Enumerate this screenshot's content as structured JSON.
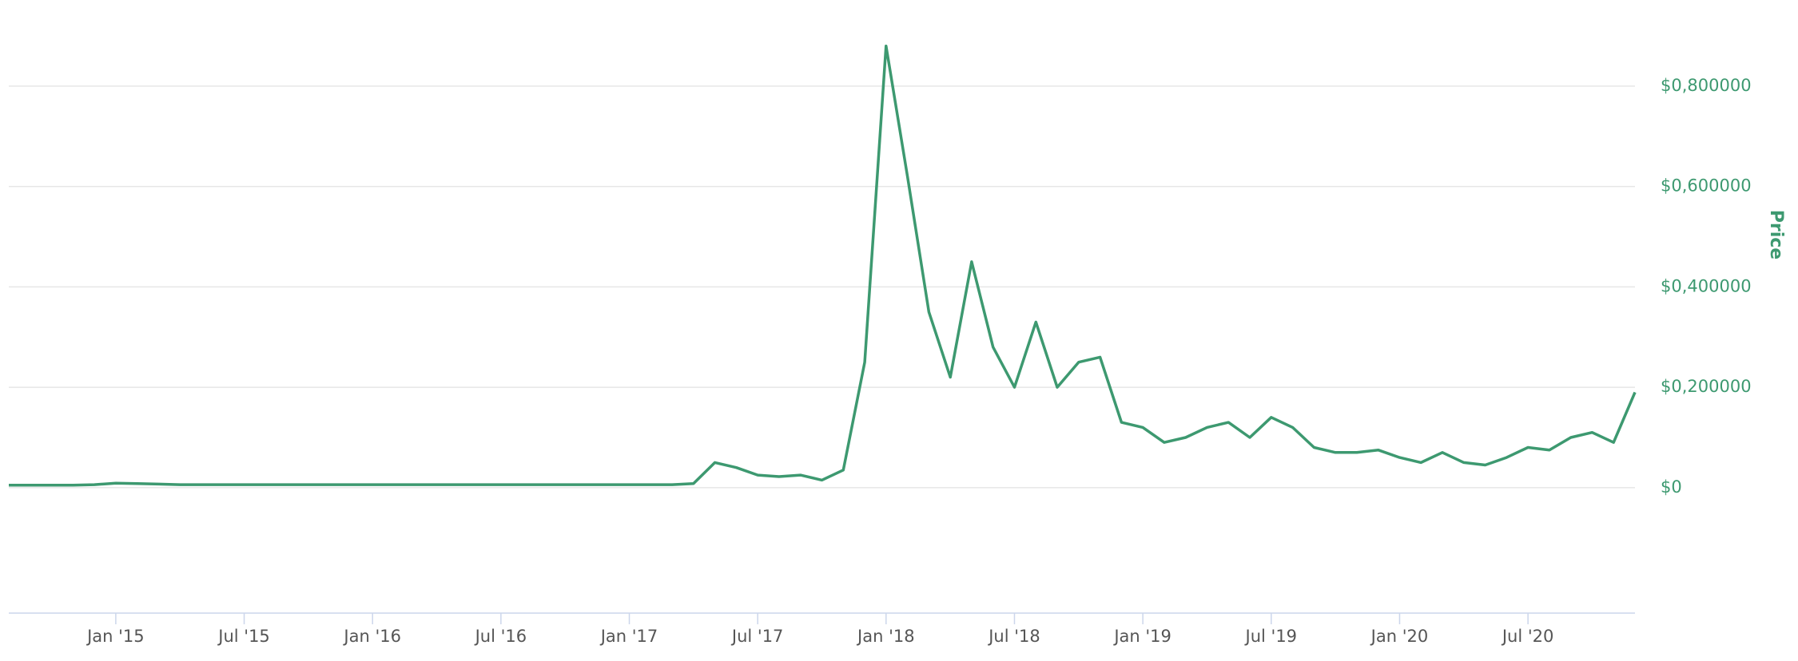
{
  "chart_data": {
    "type": "line",
    "color": "#3d9970",
    "y_label": "Price",
    "x": [
      "2014-08",
      "2014-09",
      "2014-10",
      "2014-11",
      "2014-12",
      "2015-01",
      "2015-02",
      "2015-03",
      "2015-04",
      "2015-05",
      "2015-06",
      "2015-07",
      "2015-08",
      "2015-09",
      "2015-10",
      "2015-11",
      "2015-12",
      "2016-01",
      "2016-02",
      "2016-03",
      "2016-04",
      "2016-05",
      "2016-06",
      "2016-07",
      "2016-08",
      "2016-09",
      "2016-10",
      "2016-11",
      "2016-12",
      "2017-01",
      "2017-02",
      "2017-03",
      "2017-04",
      "2017-05",
      "2017-06",
      "2017-07",
      "2017-08",
      "2017-09",
      "2017-10",
      "2017-11",
      "2017-12",
      "2018-01",
      "2018-02",
      "2018-03",
      "2018-04",
      "2018-05",
      "2018-06",
      "2018-07",
      "2018-08",
      "2018-09",
      "2018-10",
      "2018-11",
      "2018-12",
      "2019-01",
      "2019-02",
      "2019-03",
      "2019-04",
      "2019-05",
      "2019-06",
      "2019-07",
      "2019-08",
      "2019-09",
      "2019-10",
      "2019-11",
      "2019-12",
      "2020-01",
      "2020-02",
      "2020-03",
      "2020-04",
      "2020-05",
      "2020-06",
      "2020-07",
      "2020-08",
      "2020-09",
      "2020-10",
      "2020-11",
      "2020-12"
    ],
    "values": [
      0.005,
      0.005,
      0.005,
      0.005,
      0.006,
      0.009,
      0.008,
      0.007,
      0.006,
      0.006,
      0.006,
      0.006,
      0.006,
      0.006,
      0.006,
      0.006,
      0.006,
      0.006,
      0.006,
      0.006,
      0.006,
      0.006,
      0.006,
      0.006,
      0.006,
      0.006,
      0.006,
      0.006,
      0.006,
      0.006,
      0.006,
      0.006,
      0.008,
      0.05,
      0.04,
      0.025,
      0.022,
      0.025,
      0.015,
      0.035,
      0.25,
      0.88,
      0.62,
      0.35,
      0.22,
      0.45,
      0.28,
      0.2,
      0.33,
      0.2,
      0.25,
      0.26,
      0.13,
      0.12,
      0.09,
      0.1,
      0.12,
      0.13,
      0.1,
      0.14,
      0.12,
      0.08,
      0.07,
      0.07,
      0.075,
      0.06,
      0.05,
      0.07,
      0.05,
      0.045,
      0.06,
      0.08,
      0.075,
      0.1,
      0.11,
      0.09,
      0.19
    ],
    "xlim": [
      "2014-08",
      "2020-12"
    ],
    "xticks": [
      {
        "value": "2015-01",
        "label": "Jan '15"
      },
      {
        "value": "2015-07",
        "label": "Jul '15"
      },
      {
        "value": "2016-01",
        "label": "Jan '16"
      },
      {
        "value": "2016-07",
        "label": "Jul '16"
      },
      {
        "value": "2017-01",
        "label": "Jan '17"
      },
      {
        "value": "2017-07",
        "label": "Jul '17"
      },
      {
        "value": "2018-01",
        "label": "Jan '18"
      },
      {
        "value": "2018-07",
        "label": "Jul '18"
      },
      {
        "value": "2019-01",
        "label": "Jan '19"
      },
      {
        "value": "2019-07",
        "label": "Jul '19"
      },
      {
        "value": "2020-01",
        "label": "Jan '20"
      },
      {
        "value": "2020-07",
        "label": "Jul '20"
      }
    ],
    "ylim": [
      -0.25,
      0.9
    ],
    "yticks": [
      {
        "value": 0,
        "label": "$0"
      },
      {
        "value": 0.2,
        "label": "$0,200000"
      },
      {
        "value": 0.4,
        "label": "$0,400000"
      },
      {
        "value": 0.6,
        "label": "$0,600000"
      },
      {
        "value": 0.8,
        "label": "$0,800000"
      }
    ],
    "grid": true
  }
}
